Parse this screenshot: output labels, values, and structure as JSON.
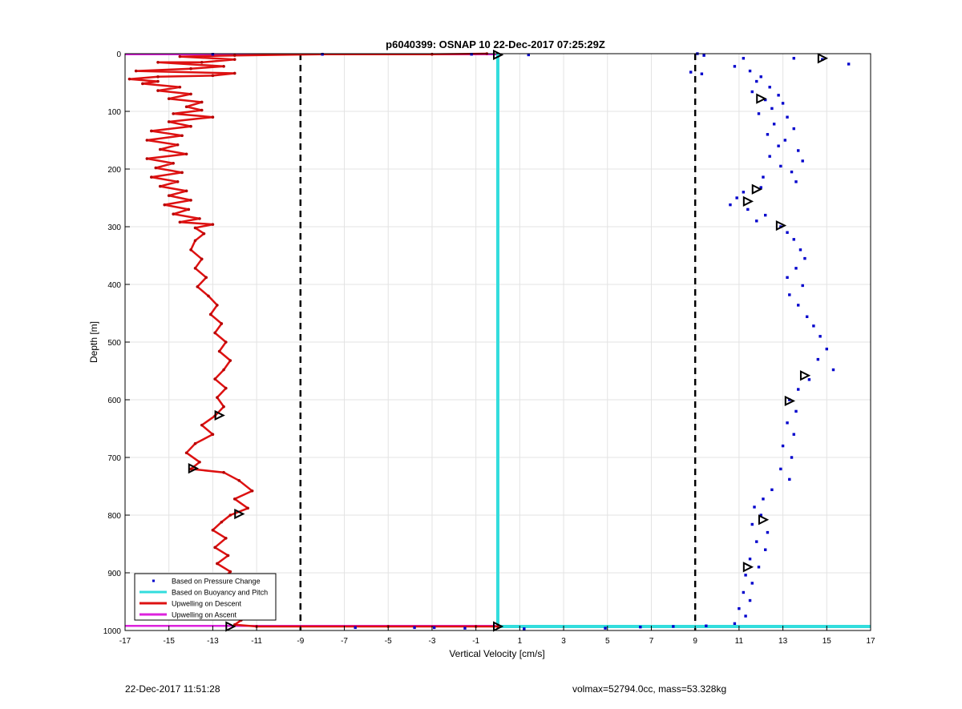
{
  "chart_data": {
    "type": "scatter",
    "title": "p6040399: OSNAP 10 22-Dec-2017 07:25:29Z",
    "xlabel": "Vertical Velocity [cm/s]",
    "ylabel": "Depth [m]",
    "xlim": [
      -17,
      17
    ],
    "ylim": [
      0,
      1000
    ],
    "y_reversed": true,
    "grid": true,
    "xticks": [
      -17,
      -15,
      -13,
      -11,
      -9,
      -7,
      -5,
      -3,
      -1,
      1,
      3,
      5,
      7,
      9,
      11,
      13,
      15,
      17
    ],
    "yticks": [
      0,
      100,
      200,
      300,
      400,
      500,
      600,
      700,
      800,
      900,
      1000
    ],
    "legend_position": "bottom-left",
    "dashed_reference_lines_x": [
      -9,
      9
    ],
    "series": [
      {
        "name": "Based on Pressure Change",
        "style": "dots",
        "color": "#0000cc",
        "points": [
          [
            9.1,
            0
          ],
          [
            9.4,
            3
          ],
          [
            8.8,
            32
          ],
          [
            9.3,
            35
          ],
          [
            13.5,
            8
          ],
          [
            14.8,
            10
          ],
          [
            16.0,
            18
          ],
          [
            11.2,
            8
          ],
          [
            10.8,
            22
          ],
          [
            11.5,
            30
          ],
          [
            12.0,
            40
          ],
          [
            11.8,
            48
          ],
          [
            12.4,
            58
          ],
          [
            11.6,
            66
          ],
          [
            12.8,
            72
          ],
          [
            12.2,
            80
          ],
          [
            13.0,
            86
          ],
          [
            12.5,
            95
          ],
          [
            11.9,
            104
          ],
          [
            13.2,
            110
          ],
          [
            12.6,
            122
          ],
          [
            13.5,
            130
          ],
          [
            12.3,
            140
          ],
          [
            13.1,
            150
          ],
          [
            12.8,
            160
          ],
          [
            13.7,
            168
          ],
          [
            12.4,
            178
          ],
          [
            13.9,
            186
          ],
          [
            12.9,
            195
          ],
          [
            13.4,
            205
          ],
          [
            12.1,
            214
          ],
          [
            13.6,
            222
          ],
          [
            12.0,
            232
          ],
          [
            11.2,
            240
          ],
          [
            10.9,
            250
          ],
          [
            10.6,
            262
          ],
          [
            11.4,
            270
          ],
          [
            12.2,
            280
          ],
          [
            11.8,
            290
          ],
          [
            12.9,
            300
          ],
          [
            13.2,
            310
          ],
          [
            13.5,
            322
          ],
          [
            13.8,
            340
          ],
          [
            14.0,
            355
          ],
          [
            13.6,
            372
          ],
          [
            13.2,
            388
          ],
          [
            13.9,
            402
          ],
          [
            13.3,
            418
          ],
          [
            13.7,
            436
          ],
          [
            14.1,
            456
          ],
          [
            14.4,
            472
          ],
          [
            14.7,
            490
          ],
          [
            15.0,
            512
          ],
          [
            14.6,
            530
          ],
          [
            15.3,
            548
          ],
          [
            14.2,
            565
          ],
          [
            13.7,
            582
          ],
          [
            13.3,
            600
          ],
          [
            13.6,
            620
          ],
          [
            13.2,
            640
          ],
          [
            13.5,
            660
          ],
          [
            13.0,
            680
          ],
          [
            13.4,
            700
          ],
          [
            12.9,
            720
          ],
          [
            13.3,
            738
          ],
          [
            12.5,
            756
          ],
          [
            12.1,
            772
          ],
          [
            11.7,
            786
          ],
          [
            12.0,
            800
          ],
          [
            11.6,
            816
          ],
          [
            12.3,
            830
          ],
          [
            11.8,
            846
          ],
          [
            12.2,
            860
          ],
          [
            11.5,
            876
          ],
          [
            11.9,
            890
          ],
          [
            11.3,
            904
          ],
          [
            11.6,
            918
          ],
          [
            11.2,
            934
          ],
          [
            11.5,
            948
          ],
          [
            11.0,
            962
          ],
          [
            11.3,
            975
          ],
          [
            10.8,
            988
          ],
          [
            -8.0,
            1
          ],
          [
            -13.0,
            1
          ],
          [
            -1.2,
            1
          ],
          [
            1.4,
            2
          ],
          [
            -6.5,
            995
          ],
          [
            -3.8,
            995
          ],
          [
            -2.9,
            995
          ],
          [
            -1.5,
            996
          ],
          [
            1.2,
            997
          ],
          [
            4.9,
            996
          ],
          [
            6.5,
            994
          ],
          [
            8.0,
            993
          ],
          [
            9.5,
            992
          ]
        ]
      },
      {
        "name": "Based on Buoyancy and Pitch",
        "style": "line",
        "color": "#33dddd",
        "points": [
          [
            0,
            0
          ],
          [
            0,
            990
          ],
          [
            0,
            993
          ],
          [
            17,
            993
          ]
        ]
      },
      {
        "name": "Upwelling on Descent",
        "style": "line",
        "color": "#dd1111",
        "points": [
          [
            -0.5,
            0
          ],
          [
            -3,
            1
          ],
          [
            -8,
            1
          ],
          [
            -12,
            3
          ],
          [
            -14.5,
            5
          ],
          [
            -12,
            10
          ],
          [
            -13.5,
            15
          ],
          [
            -15.5,
            15
          ],
          [
            -12.5,
            22
          ],
          [
            -14,
            26
          ],
          [
            -16.5,
            30
          ],
          [
            -12,
            34
          ],
          [
            -13,
            38
          ],
          [
            -15.5,
            40
          ],
          [
            -16.8,
            44
          ],
          [
            -15.5,
            48
          ],
          [
            -16.2,
            52
          ],
          [
            -14.5,
            58
          ],
          [
            -15.5,
            64
          ],
          [
            -14,
            70
          ],
          [
            -15,
            78
          ],
          [
            -13.5,
            84
          ],
          [
            -14.2,
            92
          ],
          [
            -13.5,
            98
          ],
          [
            -14.8,
            104
          ],
          [
            -13.0,
            110
          ],
          [
            -15.0,
            118
          ],
          [
            -14.0,
            126
          ],
          [
            -15.8,
            134
          ],
          [
            -14.4,
            142
          ],
          [
            -16.0,
            150
          ],
          [
            -14.6,
            158
          ],
          [
            -15.4,
            166
          ],
          [
            -14.2,
            174
          ],
          [
            -16.0,
            182
          ],
          [
            -14.8,
            190
          ],
          [
            -15.6,
            198
          ],
          [
            -14.4,
            206
          ],
          [
            -15.8,
            214
          ],
          [
            -14.6,
            222
          ],
          [
            -15.4,
            230
          ],
          [
            -14.2,
            238
          ],
          [
            -15.0,
            246
          ],
          [
            -14.0,
            254
          ],
          [
            -15.2,
            262
          ],
          [
            -14.1,
            270
          ],
          [
            -14.8,
            278
          ],
          [
            -13.6,
            286
          ],
          [
            -14.5,
            292
          ],
          [
            -13.0,
            296
          ],
          [
            -13.8,
            302
          ],
          [
            -13.4,
            312
          ],
          [
            -13.8,
            324
          ],
          [
            -14.0,
            340
          ],
          [
            -13.5,
            356
          ],
          [
            -13.8,
            372
          ],
          [
            -13.3,
            388
          ],
          [
            -13.7,
            404
          ],
          [
            -13.2,
            420
          ],
          [
            -12.8,
            436
          ],
          [
            -13.1,
            452
          ],
          [
            -12.6,
            468
          ],
          [
            -12.9,
            484
          ],
          [
            -12.4,
            500
          ],
          [
            -12.7,
            516
          ],
          [
            -12.2,
            532
          ],
          [
            -12.5,
            548
          ],
          [
            -12.9,
            564
          ],
          [
            -12.4,
            580
          ],
          [
            -12.8,
            596
          ],
          [
            -12.5,
            612
          ],
          [
            -12.9,
            628
          ],
          [
            -13.5,
            644
          ],
          [
            -13.0,
            660
          ],
          [
            -13.8,
            676
          ],
          [
            -14.2,
            692
          ],
          [
            -13.6,
            708
          ],
          [
            -14.0,
            720
          ],
          [
            -12.5,
            726
          ],
          [
            -11.8,
            740
          ],
          [
            -11.2,
            758
          ],
          [
            -12.0,
            772
          ],
          [
            -11.4,
            788
          ],
          [
            -12.2,
            800
          ],
          [
            -12.6,
            812
          ],
          [
            -13.0,
            826
          ],
          [
            -12.4,
            840
          ],
          [
            -12.9,
            856
          ],
          [
            -12.3,
            870
          ],
          [
            -12.8,
            884
          ],
          [
            -12.2,
            898
          ],
          [
            -12.6,
            912
          ],
          [
            -12.0,
            926
          ],
          [
            -11.6,
            940
          ],
          [
            -11.9,
            952
          ],
          [
            -11.5,
            962
          ],
          [
            -12.0,
            972
          ],
          [
            -11.7,
            982
          ],
          [
            -12.0,
            990
          ],
          [
            -11.0,
            993
          ],
          [
            -5,
            993
          ],
          [
            -1,
            993
          ],
          [
            0,
            993
          ]
        ]
      },
      {
        "name": "Upwelling on Ascent",
        "style": "line",
        "color": "#dd22dd",
        "points": [
          [
            -17,
            1
          ],
          [
            0,
            1
          ],
          [
            0,
            992
          ],
          [
            -17,
            992
          ]
        ]
      }
    ],
    "triangle_markers": [
      [
        0,
        2
      ],
      [
        14.8,
        8
      ],
      [
        12.0,
        78
      ],
      [
        11.8,
        235
      ],
      [
        11.4,
        256
      ],
      [
        12.9,
        298
      ],
      [
        14.0,
        558
      ],
      [
        13.3,
        602
      ],
      [
        -12.7,
        627
      ],
      [
        -13.9,
        719
      ],
      [
        -11.8,
        798
      ],
      [
        12.1,
        808
      ],
      [
        11.4,
        890
      ],
      [
        -11.8,
        957
      ],
      [
        -12.2,
        993
      ],
      [
        0,
        993
      ]
    ]
  },
  "footer": {
    "timestamp": "22-Dec-2017 11:51:28",
    "info": "volmax=52794.0cc, mass=53.328kg"
  }
}
